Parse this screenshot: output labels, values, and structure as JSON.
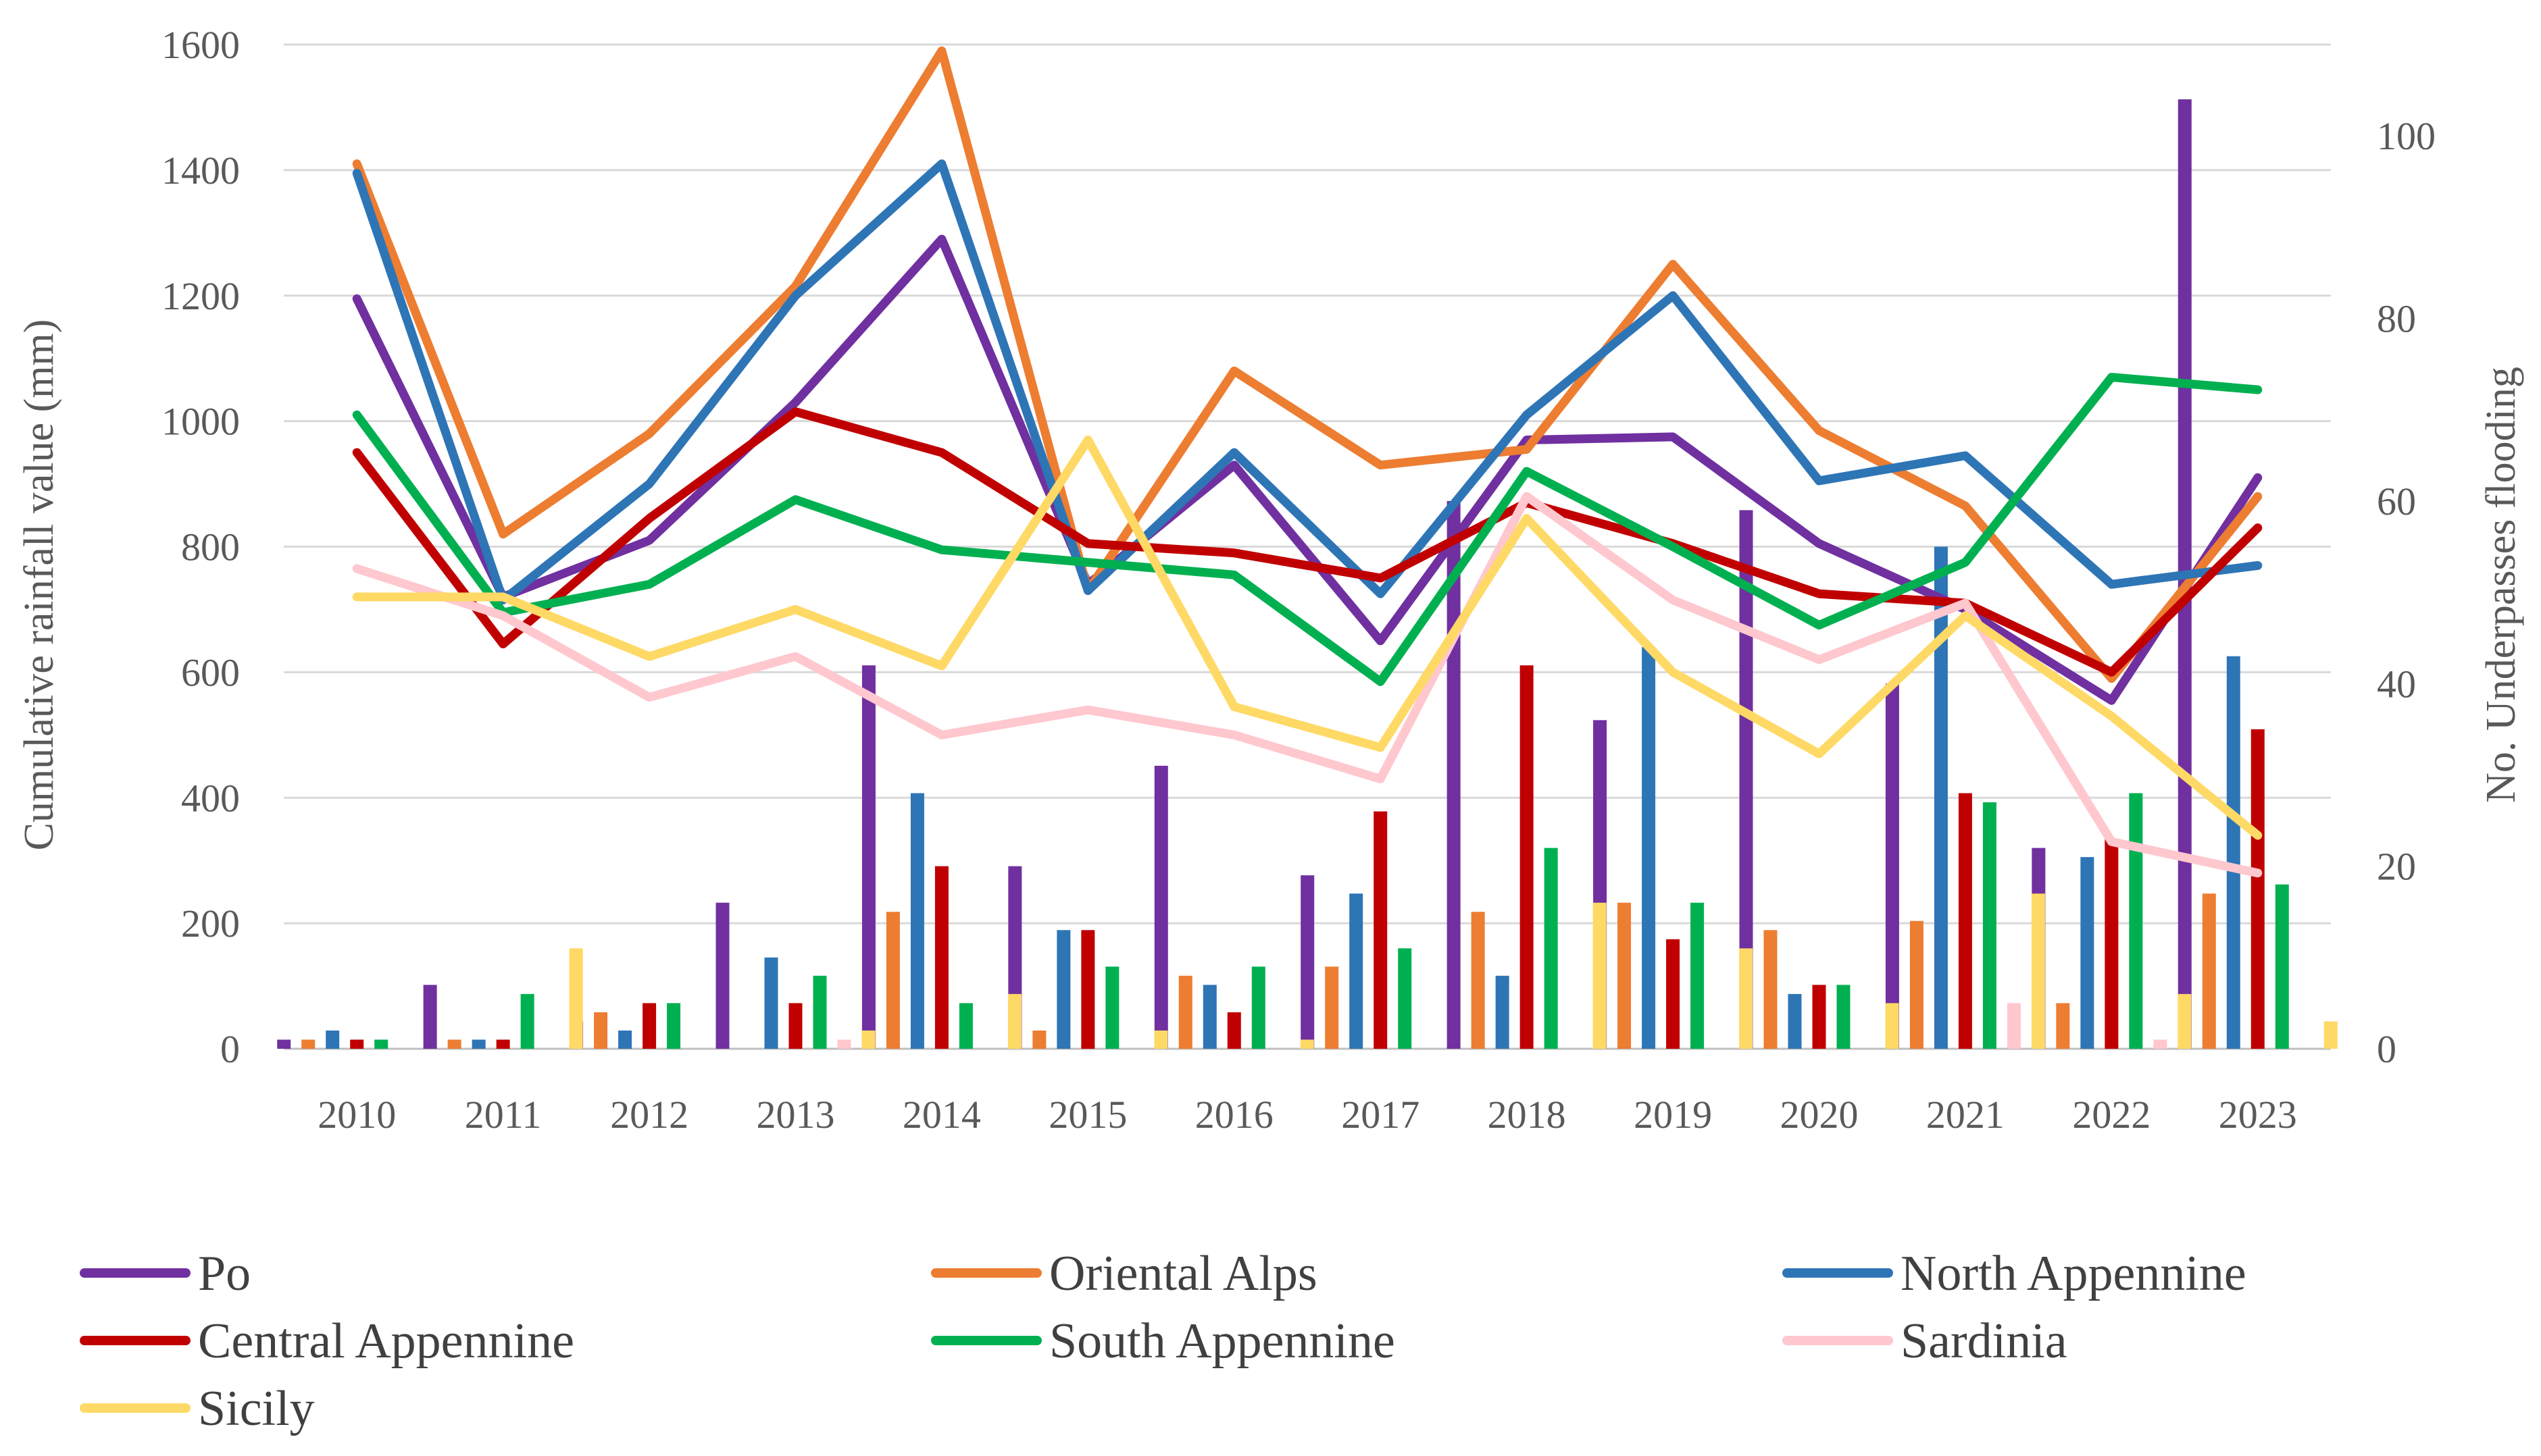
{
  "chart_data": {
    "type": "bar+line",
    "title": "",
    "xlabel": "",
    "ylabel": "Cumulative rainfall value (mm)",
    "y2label": "No. Underpasses flooding",
    "ylim": [
      0,
      1600
    ],
    "y2lim": [
      0,
      110
    ],
    "yticks": [
      "0",
      "200",
      "400",
      "600",
      "800",
      "1000",
      "1200",
      "1400",
      "1600"
    ],
    "y2ticks": [
      "0",
      "20",
      "40",
      "60",
      "80",
      "100"
    ],
    "grid": true,
    "legend_position": "bottom",
    "categories": [
      "2010",
      "2011",
      "2012",
      "2013",
      "2014",
      "2015",
      "2016",
      "2017",
      "2018",
      "2019",
      "2020",
      "2021",
      "2022",
      "2023"
    ],
    "series": [
      {
        "name": "Po",
        "color": "#7030a0",
        "rainfall": [
          1195,
          720,
          810,
          1030,
          1290,
          740,
          930,
          650,
          970,
          975,
          805,
          700,
          555,
          910
        ],
        "underpasses": [
          1,
          7,
          3,
          16,
          42,
          20,
          31,
          19,
          60,
          36,
          59,
          40,
          22,
          104
        ]
      },
      {
        "name": "Oriental Alps",
        "color": "#ed7d31",
        "rainfall": [
          1410,
          820,
          980,
          1215,
          1590,
          730,
          1080,
          930,
          955,
          1250,
          985,
          865,
          590,
          880
        ],
        "underpasses": [
          1,
          1,
          4,
          0,
          15,
          2,
          8,
          9,
          15,
          16,
          13,
          14,
          5,
          17
        ]
      },
      {
        "name": "North Appennine",
        "color": "#2e75b6",
        "rainfall": [
          1395,
          715,
          900,
          1200,
          1410,
          730,
          950,
          725,
          1010,
          1200,
          905,
          945,
          740,
          770
        ],
        "underpasses": [
          2,
          1,
          2,
          10,
          28,
          13,
          7,
          17,
          8,
          44,
          6,
          55,
          21,
          43
        ]
      },
      {
        "name": "Central Appennine",
        "color": "#c00000",
        "rainfall": [
          950,
          645,
          845,
          1015,
          950,
          805,
          790,
          750,
          870,
          805,
          725,
          710,
          600,
          830
        ],
        "underpasses": [
          1,
          1,
          5,
          5,
          20,
          13,
          4,
          26,
          42,
          12,
          7,
          28,
          23,
          35
        ]
      },
      {
        "name": "South Appennine",
        "color": "#00b050",
        "rainfall": [
          1010,
          695,
          740,
          875,
          795,
          775,
          755,
          585,
          920,
          800,
          675,
          775,
          1070,
          1050
        ],
        "underpasses": [
          1,
          6,
          5,
          8,
          5,
          9,
          9,
          11,
          22,
          16,
          7,
          27,
          28,
          18
        ]
      },
      {
        "name": "Sardinia",
        "color": "#ffc7ce",
        "rainfall": [
          765,
          690,
          560,
          625,
          500,
          540,
          500,
          430,
          880,
          715,
          620,
          710,
          330,
          280
        ],
        "underpasses": [
          0,
          0,
          0,
          1,
          0,
          0,
          0,
          0,
          0,
          0,
          0,
          5,
          1,
          0
        ]
      },
      {
        "name": "Sicily",
        "color": "#ffd966",
        "rainfall": [
          720,
          720,
          625,
          700,
          610,
          970,
          545,
          480,
          845,
          600,
          470,
          690,
          530,
          340
        ],
        "underpasses": [
          0,
          11,
          0,
          2,
          6,
          2,
          1,
          0,
          16,
          11,
          5,
          17,
          6,
          3
        ]
      }
    ]
  }
}
